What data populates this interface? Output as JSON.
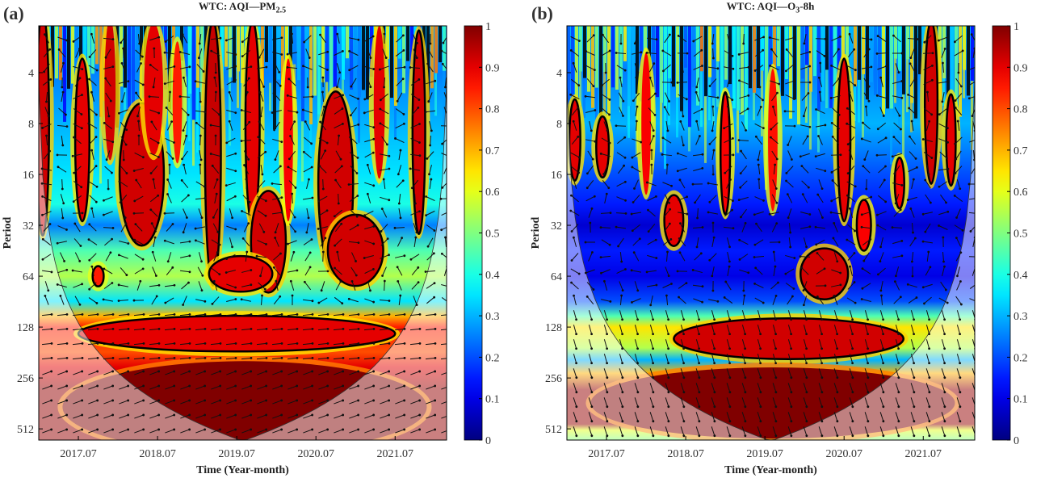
{
  "chart_data": [
    {
      "type": "heatmap",
      "panel_label": "(a)",
      "title": "WTC: AQI—PM",
      "title_sub": "2.5",
      "xlabel": "Time (Year-month)",
      "ylabel": "Period",
      "xlim": [
        2017.0,
        2022.15
      ],
      "ylim_period": [
        2,
        600
      ],
      "xticks": [
        {
          "t": 2017.5,
          "label": "2017.07"
        },
        {
          "t": 2018.5,
          "label": "2018.07"
        },
        {
          "t": 2019.5,
          "label": "2019.07"
        },
        {
          "t": 2020.5,
          "label": "2020.07"
        },
        {
          "t": 2021.5,
          "label": "2021.07"
        }
      ],
      "yticks": [
        4,
        8,
        16,
        32,
        64,
        128,
        256,
        512
      ],
      "colorbar": {
        "range": [
          0,
          1
        ],
        "ticks": [
          "0",
          "0.1",
          "0.2",
          "0.3",
          "0.4",
          "0.5",
          "0.6",
          "0.7",
          "0.8",
          "0.9",
          "1"
        ]
      },
      "coi_scale": 233,
      "background_profile": [
        [
          2,
          0.3
        ],
        [
          4,
          0.25
        ],
        [
          8,
          0.3
        ],
        [
          16,
          0.35
        ],
        [
          24,
          0.4
        ],
        [
          32,
          0.25
        ],
        [
          45,
          0.45
        ],
        [
          64,
          0.55
        ],
        [
          90,
          0.35
        ],
        [
          110,
          0.7
        ],
        [
          128,
          0.85
        ],
        [
          180,
          0.8
        ],
        [
          220,
          0.9
        ],
        [
          300,
          0.98
        ],
        [
          600,
          0.98
        ]
      ],
      "regions": [
        {
          "t": 2017.05,
          "p": 8,
          "dt": 0.08,
          "doct": 2.2,
          "v": 0.92,
          "sig": true
        },
        {
          "t": 2017.55,
          "p": 10,
          "dt": 0.09,
          "doct": 1.6,
          "v": 0.9,
          "sig": true
        },
        {
          "t": 2017.9,
          "p": 5,
          "dt": 0.07,
          "doct": 1.4,
          "v": 0.92,
          "sig": false
        },
        {
          "t": 2018.3,
          "p": 16,
          "dt": 0.28,
          "doct": 1.4,
          "v": 0.92,
          "sig": true
        },
        {
          "t": 2018.45,
          "p": 5,
          "dt": 0.12,
          "doct": 1.3,
          "v": 0.9,
          "sig": false
        },
        {
          "t": 2018.75,
          "p": 6,
          "dt": 0.06,
          "doct": 1.2,
          "v": 0.85,
          "sig": false
        },
        {
          "t": 2019.2,
          "p": 12,
          "dt": 0.1,
          "doct": 2.6,
          "v": 0.93,
          "sig": true
        },
        {
          "t": 2019.7,
          "p": 8,
          "dt": 0.09,
          "doct": 2.0,
          "v": 0.9,
          "sig": true
        },
        {
          "t": 2019.9,
          "p": 40,
          "dt": 0.22,
          "doct": 1.0,
          "v": 0.92,
          "sig": true
        },
        {
          "t": 2019.55,
          "p": 62,
          "dt": 0.4,
          "doct": 0.35,
          "v": 0.9,
          "sig": true
        },
        {
          "t": 2020.15,
          "p": 10,
          "dt": 0.06,
          "doct": 1.6,
          "v": 0.88,
          "sig": false
        },
        {
          "t": 2020.75,
          "p": 18,
          "dt": 0.22,
          "doct": 1.8,
          "v": 0.92,
          "sig": true
        },
        {
          "t": 2021.0,
          "p": 45,
          "dt": 0.35,
          "doct": 0.7,
          "v": 0.92,
          "sig": true
        },
        {
          "t": 2021.3,
          "p": 6,
          "dt": 0.07,
          "doct": 1.5,
          "v": 0.9,
          "sig": false
        },
        {
          "t": 2021.8,
          "p": 9,
          "dt": 0.08,
          "doct": 2.0,
          "v": 0.92,
          "sig": true
        },
        {
          "t": 2017.75,
          "p": 64,
          "dt": 0.07,
          "doct": 0.2,
          "v": 0.85,
          "sig": true
        },
        {
          "t": 2019.5,
          "p": 140,
          "dt": 2.0,
          "doct": 0.35,
          "v": 0.9,
          "sig": true
        },
        {
          "t": 2019.6,
          "p": 380,
          "dt": 2.3,
          "doct": 0.9,
          "v": 1.0,
          "sig": false
        }
      ]
    },
    {
      "type": "heatmap",
      "panel_label": "(b)",
      "title": "WTC: AQI—O",
      "title_sub": "3",
      "title_suffix": "-8h",
      "xlabel": "Time (Year-month)",
      "ylabel": "Period",
      "xlim": [
        2017.0,
        2022.15
      ],
      "ylim_period": [
        2,
        600
      ],
      "xticks": [
        {
          "t": 2017.5,
          "label": "2017.07"
        },
        {
          "t": 2018.5,
          "label": "2018.07"
        },
        {
          "t": 2019.5,
          "label": "2019.07"
        },
        {
          "t": 2020.5,
          "label": "2020.07"
        },
        {
          "t": 2021.5,
          "label": "2021.07"
        }
      ],
      "yticks": [
        4,
        8,
        16,
        32,
        64,
        128,
        256,
        512
      ],
      "colorbar": {
        "range": [
          0,
          1
        ],
        "ticks": [
          "0",
          "0.1",
          "0.2",
          "0.3",
          "0.4",
          "0.5",
          "0.6",
          "0.7",
          "0.8",
          "0.9",
          "1"
        ]
      },
      "coi_scale": 233,
      "background_profile": [
        [
          2,
          0.3
        ],
        [
          4,
          0.25
        ],
        [
          8,
          0.3
        ],
        [
          16,
          0.2
        ],
        [
          24,
          0.15
        ],
        [
          32,
          0.08
        ],
        [
          45,
          0.15
        ],
        [
          64,
          0.1
        ],
        [
          90,
          0.2
        ],
        [
          110,
          0.45
        ],
        [
          128,
          0.65
        ],
        [
          170,
          0.55
        ],
        [
          200,
          0.3
        ],
        [
          240,
          0.7
        ],
        [
          300,
          0.98
        ],
        [
          480,
          0.98
        ],
        [
          520,
          0.6
        ],
        [
          600,
          0.5
        ]
      ],
      "regions": [
        {
          "t": 2017.1,
          "p": 10,
          "dt": 0.07,
          "doct": 0.8,
          "v": 0.9,
          "sig": true
        },
        {
          "t": 2017.45,
          "p": 11,
          "dt": 0.08,
          "doct": 0.6,
          "v": 0.9,
          "sig": true
        },
        {
          "t": 2018.35,
          "p": 30,
          "dt": 0.12,
          "doct": 0.5,
          "v": 0.9,
          "sig": true
        },
        {
          "t": 2018.0,
          "p": 8,
          "dt": 0.06,
          "doct": 1.4,
          "v": 0.88,
          "sig": false
        },
        {
          "t": 2019.0,
          "p": 12,
          "dt": 0.06,
          "doct": 1.2,
          "v": 0.88,
          "sig": true
        },
        {
          "t": 2019.6,
          "p": 10,
          "dt": 0.06,
          "doct": 1.4,
          "v": 0.86,
          "sig": false
        },
        {
          "t": 2020.5,
          "p": 10,
          "dt": 0.08,
          "doct": 1.6,
          "v": 0.9,
          "sig": true
        },
        {
          "t": 2020.75,
          "p": 32,
          "dt": 0.09,
          "doct": 0.5,
          "v": 0.88,
          "sig": true
        },
        {
          "t": 2021.2,
          "p": 18,
          "dt": 0.06,
          "doct": 0.5,
          "v": 0.88,
          "sig": true
        },
        {
          "t": 2021.6,
          "p": 6,
          "dt": 0.08,
          "doct": 1.6,
          "v": 0.92,
          "sig": true
        },
        {
          "t": 2021.85,
          "p": 10,
          "dt": 0.06,
          "doct": 0.9,
          "v": 0.9,
          "sig": true
        },
        {
          "t": 2020.25,
          "p": 62,
          "dt": 0.3,
          "doct": 0.5,
          "v": 0.92,
          "sig": true
        },
        {
          "t": 2019.8,
          "p": 150,
          "dt": 1.45,
          "doct": 0.4,
          "v": 0.92,
          "sig": true
        },
        {
          "t": 2019.6,
          "p": 360,
          "dt": 2.3,
          "doct": 0.7,
          "v": 1.0,
          "sig": false
        }
      ]
    }
  ]
}
